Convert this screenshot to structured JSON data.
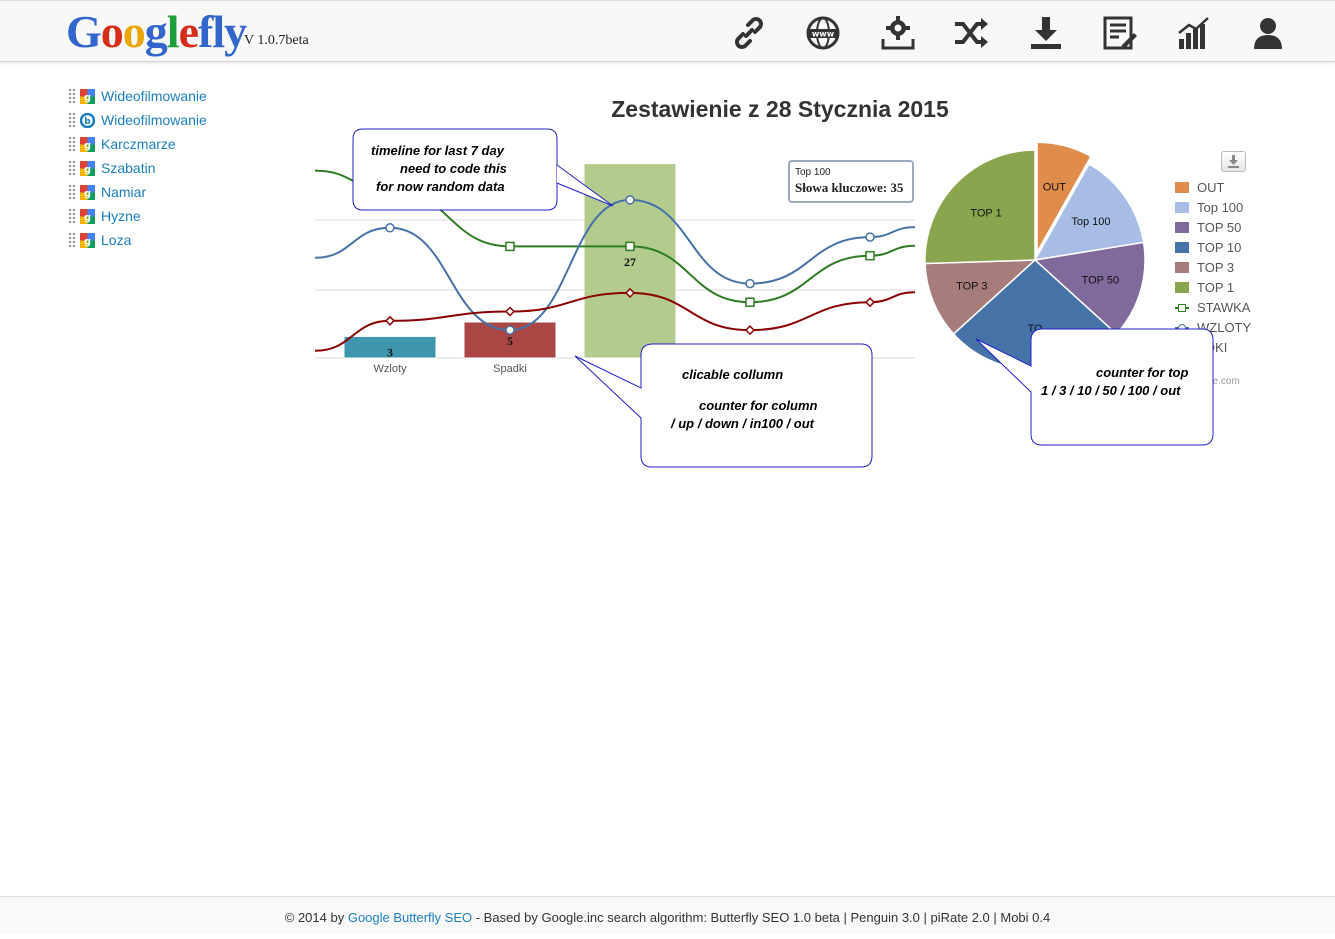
{
  "header": {
    "logo_text": "Googlefly",
    "version": "V 1.0.7beta",
    "nav_icons": [
      "link-icon",
      "globe-icon",
      "gear-icon",
      "shuffle-icon",
      "download-icon",
      "edit-list-icon",
      "bar-chart-icon",
      "user-icon"
    ]
  },
  "sidebar": {
    "items": [
      {
        "label": "Wideofilmowanie",
        "engine": "google"
      },
      {
        "label": "Wideofilmowanie",
        "engine": "bing"
      },
      {
        "label": "Karczmarze",
        "engine": "google"
      },
      {
        "label": "Szabatin",
        "engine": "google"
      },
      {
        "label": "Namiar",
        "engine": "google"
      },
      {
        "label": "Hyzne",
        "engine": "google"
      },
      {
        "label": "Loza",
        "engine": "google"
      }
    ]
  },
  "chart": {
    "title": "Zestawienie z 28 Stycznia 2015",
    "tooltip_title": "Top 100",
    "tooltip_value": "Słowa kluczowe: 35",
    "credit": "ne.com"
  },
  "chart_data": {
    "type": "bar",
    "categories": [
      "Wzloty",
      "Spadki",
      "",
      "",
      ""
    ],
    "values": [
      3,
      5,
      27,
      0.5,
      null
    ],
    "value_labels": [
      "3",
      "5",
      "27",
      "",
      ""
    ],
    "colors": [
      "#3d96ae",
      "#aa4643",
      "#b4cb8e",
      "#e08c4a",
      ""
    ],
    "series_lines": [
      {
        "name": "STAWKA",
        "color": "#2e7d23",
        "marker": "square",
        "values": [
          18,
          12,
          12,
          6,
          11
        ]
      },
      {
        "name": "WZLOTY",
        "color": "#4572a7",
        "marker": "circle",
        "values": [
          14,
          3,
          17,
          8,
          13
        ]
      },
      {
        "name": "SPADKI",
        "color": "#8b0000",
        "marker": "diamond",
        "values": [
          4,
          5,
          7,
          3,
          6
        ]
      }
    ],
    "pie": [
      {
        "name": "OUT",
        "value": 8,
        "color": "#e08c4a",
        "label": "OUT"
      },
      {
        "name": "Top 100",
        "value": 14,
        "color": "#a8bde5",
        "label": "Top 100"
      },
      {
        "name": "TOP 50",
        "value": 14,
        "color": "#80699b",
        "label": "TOP 50"
      },
      {
        "name": "TOP 10",
        "value": 26,
        "color": "#4572a7",
        "label": "TO"
      },
      {
        "name": "TOP 3",
        "value": 11,
        "color": "#a77d7b",
        "label": "TOP 3"
      },
      {
        "name": "TOP 1",
        "value": 25,
        "color": "#89a54e",
        "label": "TOP 1"
      }
    ],
    "legend": [
      {
        "name": "OUT",
        "color": "#e08c4a",
        "kind": "box"
      },
      {
        "name": "Top 100",
        "color": "#a8bde5",
        "kind": "box"
      },
      {
        "name": "TOP 50",
        "color": "#80699b",
        "kind": "box"
      },
      {
        "name": "TOP 10",
        "color": "#4572a7",
        "kind": "box"
      },
      {
        "name": "TOP 3",
        "color": "#a77d7b",
        "kind": "box"
      },
      {
        "name": "TOP 1",
        "color": "#89a54e",
        "kind": "box"
      },
      {
        "name": "STAWKA",
        "color": "#2e7d23",
        "kind": "square"
      },
      {
        "name": "WZLOTY",
        "color": "#4572a7",
        "kind": "circle"
      },
      {
        "name": "ADKI",
        "color": "#8b0000",
        "kind": "diamond"
      }
    ]
  },
  "callouts": {
    "timeline": [
      "timeline for last 7 day",
      "need to code this",
      "for now random data"
    ],
    "column": [
      "clicable collumn",
      "counter for column",
      "/ up / down / in100 / out"
    ],
    "top": [
      "counter for top",
      "1 / 3 / 10 / 50 / 100 / out"
    ]
  },
  "footer": {
    "prefix": "© 2014 by ",
    "link": "Google Butterfly SEO",
    "suffix": " - Based by Google.inc search algorithm: Butterfly SEO 1.0 beta | Penguin 3.0 | piRate 2.0 | Mobi 0.4"
  }
}
